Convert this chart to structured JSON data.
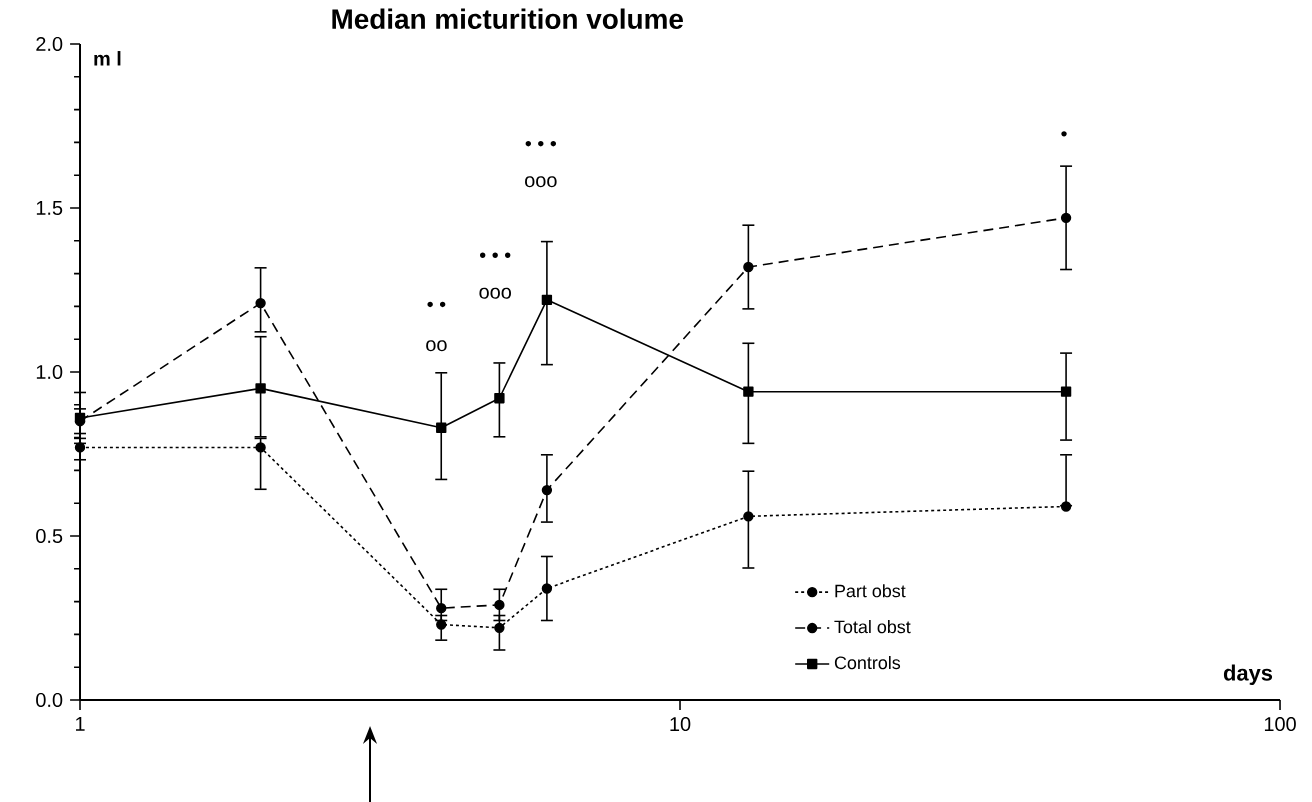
{
  "chart_data": {
    "type": "line",
    "title": "Median   micturition   volume",
    "xlabel": "days",
    "ylabel": "m l",
    "log": "x",
    "xlim": [
      1,
      100
    ],
    "xticks": [
      1,
      10,
      100
    ],
    "ylim": [
      0,
      2.0
    ],
    "yticks": [
      {
        "value": 0,
        "label": "0.0"
      },
      {
        "value": 0.5,
        "label": "0.5"
      },
      {
        "value": 1.0,
        "label": "1.0"
      },
      {
        "value": 1.5,
        "label": "1.5"
      },
      {
        "value": 2.0,
        "label": "2.0"
      }
    ],
    "x": [
      1,
      2,
      4,
      5,
      6,
      13,
      44
    ],
    "series": [
      {
        "name": "Part obst",
        "color": "#000000",
        "marker": "circle",
        "line_style": "dotted",
        "values": [
          0.77,
          0.77,
          0.23,
          0.22,
          0.34,
          0.56,
          0.59
        ],
        "errors": [
          [
            0.73,
            0.8
          ],
          [
            0.64,
            0.8
          ],
          [
            0.18,
            0.26
          ],
          [
            0.15,
            0.26
          ],
          [
            0.24,
            0.44
          ],
          [
            0.4,
            0.7
          ],
          [
            0.59,
            0.75
          ]
        ]
      },
      {
        "name": "Total obst",
        "color": "#000000",
        "marker": "circle",
        "line_style": "dashed",
        "values": [
          0.85,
          1.21,
          0.28,
          0.29,
          0.64,
          1.32,
          1.47
        ],
        "errors": [
          [
            0.81,
            0.89
          ],
          [
            1.12,
            1.32
          ],
          [
            0.24,
            0.34
          ],
          [
            0.24,
            0.34
          ],
          [
            0.54,
            0.75
          ],
          [
            1.19,
            1.45
          ],
          [
            1.31,
            1.63
          ]
        ]
      },
      {
        "name": "Controls",
        "color": "#000000",
        "marker": "square",
        "line_style": "solid",
        "values": [
          0.86,
          0.95,
          0.83,
          0.92,
          1.22,
          0.94,
          0.94
        ],
        "errors": [
          [
            0.78,
            0.94
          ],
          [
            0.8,
            1.11
          ],
          [
            0.67,
            1.0
          ],
          [
            0.8,
            1.03
          ],
          [
            1.02,
            1.4
          ],
          [
            0.78,
            1.09
          ],
          [
            0.79,
            1.06
          ]
        ]
      }
    ],
    "annotations": [
      "• •",
      "oo",
      "• • •",
      "ooo",
      "• • •",
      "ooo",
      "•"
    ],
    "legend": "bottom right",
    "grid": false
  }
}
